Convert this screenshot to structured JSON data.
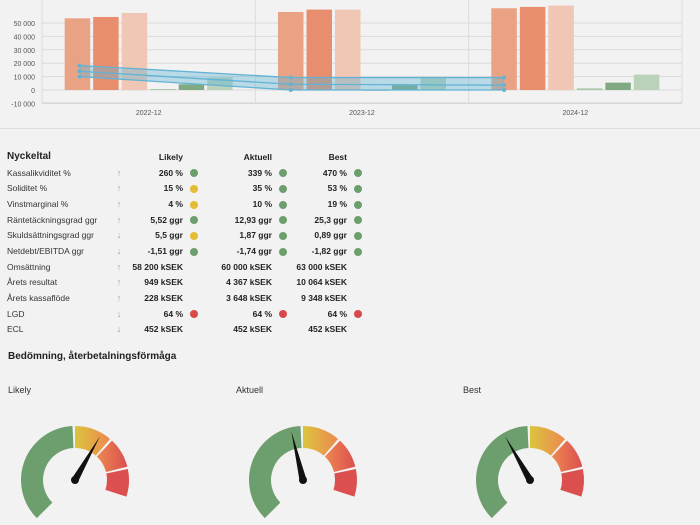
{
  "chart_data": {
    "type": "bar",
    "categories": [
      "2022-12",
      "2023-12",
      "2024-12"
    ],
    "y_ticks": [
      "50 000",
      "40 000",
      "30 000",
      "20 000",
      "10 000",
      "0",
      "-10 000"
    ],
    "ylim": [
      -10000,
      60000
    ],
    "bar_series": [
      {
        "color": "#eaa285",
        "values": [
          53500,
          58200,
          61000
        ]
      },
      {
        "color": "#e88e6f",
        "values": [
          54500,
          60000,
          62000
        ]
      },
      {
        "color": "#f0c6b4",
        "values": [
          57500,
          60000,
          63000
        ]
      },
      {
        "color": "#a7c6a6",
        "values": [
          700,
          -200,
          1200
        ]
      },
      {
        "color": "#81aa82",
        "values": [
          4300,
          3600,
          5500
        ]
      },
      {
        "color": "#bad2b9",
        "values": [
          9300,
          9300,
          11500
        ]
      }
    ],
    "line_series": [
      {
        "color": "#62b3d4",
        "values": [
          18300,
          9300,
          9300
        ]
      },
      {
        "color": "#62b3d4",
        "values": [
          14000,
          4300,
          3600
        ]
      },
      {
        "color": "#62b3d4",
        "values": [
          10000,
          0,
          0
        ]
      }
    ]
  },
  "kpi": {
    "title": "Nyckeltal",
    "columns": [
      "Likely",
      "Aktuell",
      "Best"
    ],
    "rows": [
      {
        "name": "Kassalikviditet %",
        "arrow": "↑",
        "values": [
          "260 %",
          "339 %",
          "470 %"
        ],
        "status": [
          "green",
          "green",
          "green"
        ]
      },
      {
        "name": "Soliditet %",
        "arrow": "↑",
        "values": [
          "15 %",
          "35 %",
          "53 %"
        ],
        "status": [
          "yellow",
          "green",
          "green"
        ]
      },
      {
        "name": "Vinstmarginal %",
        "arrow": "↑",
        "values": [
          "4 %",
          "10 %",
          "19 %"
        ],
        "status": [
          "yellow",
          "green",
          "green"
        ]
      },
      {
        "name": "Räntetäckningsgrad ggr",
        "arrow": "↑",
        "values": [
          "5,52 ggr",
          "12,93 ggr",
          "25,3 ggr"
        ],
        "status": [
          "green",
          "green",
          "green"
        ]
      },
      {
        "name": "Skuldsättningsgrad ggr",
        "arrow": "↓",
        "values": [
          "5,5 ggr",
          "1,87 ggr",
          "0,89 ggr"
        ],
        "status": [
          "yellow",
          "green",
          "green"
        ]
      },
      {
        "name": "Netdebt/EBITDA ggr",
        "arrow": "↓",
        "values": [
          "-1,51 ggr",
          "-1,74 ggr",
          "-1,82 ggr"
        ],
        "status": [
          "green",
          "green",
          "green"
        ]
      },
      {
        "name": "Omsättning",
        "arrow": "↑",
        "values": [
          "58 200 kSEK",
          "60 000 kSEK",
          "63 000 kSEK"
        ],
        "status": [
          "",
          "",
          ""
        ]
      },
      {
        "name": "Årets resultat",
        "arrow": "↑",
        "values": [
          "949 kSEK",
          "4 367 kSEK",
          "10 064 kSEK"
        ],
        "status": [
          "",
          "",
          ""
        ]
      },
      {
        "name": "Årets kassaflöde",
        "arrow": "↑",
        "values": [
          "228 kSEK",
          "3 648 kSEK",
          "9 348 kSEK"
        ],
        "status": [
          "",
          "",
          ""
        ]
      },
      {
        "name": "LGD",
        "arrow": "↓",
        "values": [
          "64 %",
          "64 %",
          "64 %"
        ],
        "status": [
          "red",
          "red",
          "red"
        ]
      },
      {
        "name": "ECL",
        "arrow": "↓",
        "values": [
          "452 kSEK",
          "452 kSEK",
          "452 kSEK"
        ],
        "status": [
          "",
          "",
          ""
        ]
      }
    ]
  },
  "assessment": {
    "title": "Bedömning, återbetalningsförmåga",
    "gauges": [
      {
        "label": "Likely",
        "level": 0.61
      },
      {
        "label": "Aktuell",
        "level": 0.45
      },
      {
        "label": "Best",
        "level": 0.39
      }
    ]
  }
}
